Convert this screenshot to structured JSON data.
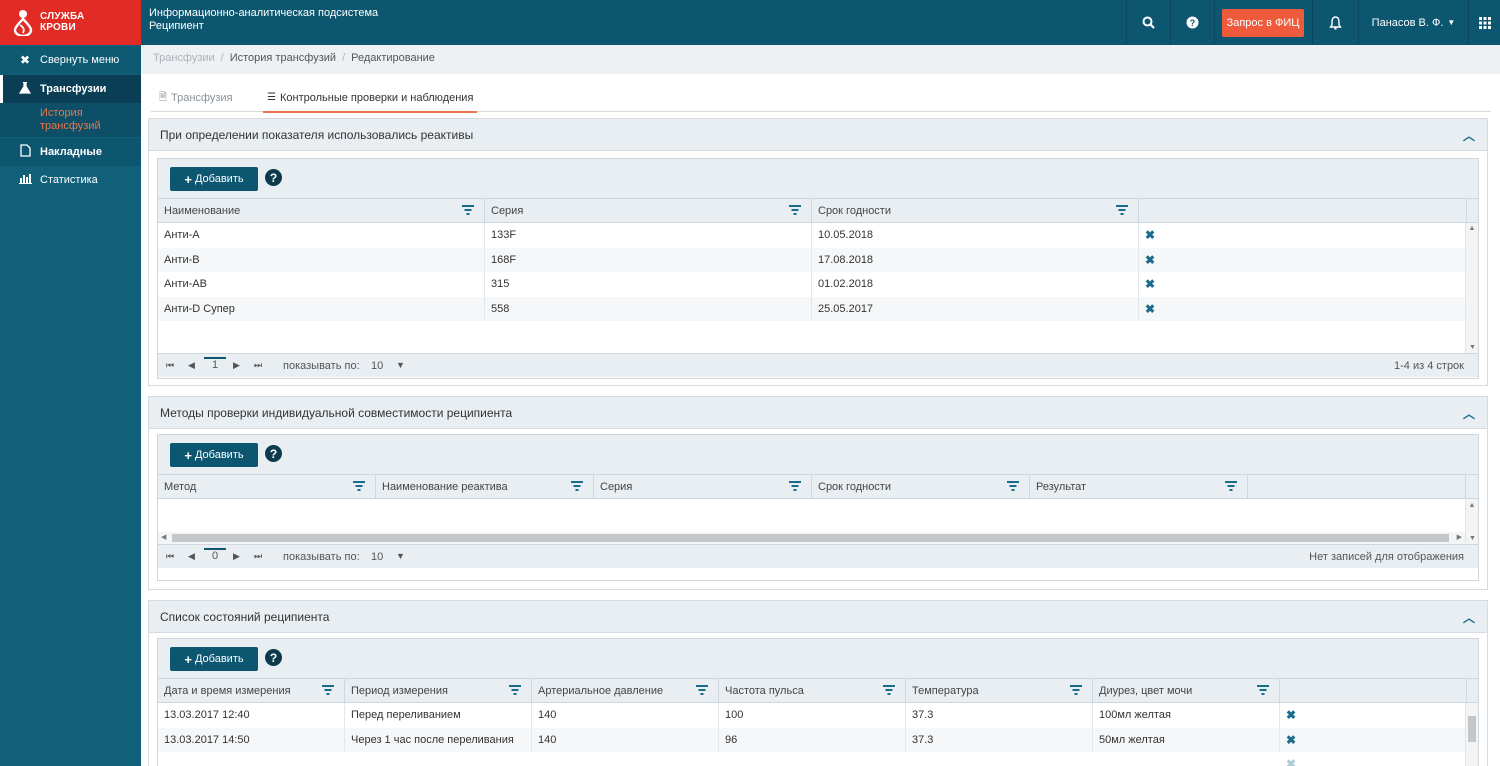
{
  "app": {
    "logo_line1": "СЛУЖБА",
    "logo_line2": "КРОВИ",
    "title_line1": "Информационно-аналитическая подсистема",
    "title_line2": "Реципиент",
    "fic_button": "Запрос в ФИЦ",
    "user_name": "Панасов В. Ф."
  },
  "sidebar": {
    "collapse": "Свернуть меню",
    "items": [
      {
        "label": "Трансфузии"
      },
      {
        "label": "История трансфузий"
      },
      {
        "label": "Накладные"
      },
      {
        "label": "Статистика"
      }
    ]
  },
  "breadcrumb": [
    "Трансфузии",
    "История трансфузий",
    "Редактирование"
  ],
  "tabs": [
    {
      "label": "Трансфузия"
    },
    {
      "label": "Контрольные проверки и наблюдения"
    }
  ],
  "add_label": "Добавить",
  "panel1": {
    "title": "При определении показателя использовались реактивы",
    "columns": [
      "Наименование",
      "Серия",
      "Срок годности"
    ],
    "rows": [
      [
        "Анти-A",
        "133F",
        "10.05.2018"
      ],
      [
        "Анти-B",
        "168F",
        "17.08.2018"
      ],
      [
        "Анти-AB",
        "315",
        "01.02.2018"
      ],
      [
        "Анти-D Супер",
        "558",
        "25.05.2017"
      ]
    ],
    "page": "1",
    "show_label": "показывать по:",
    "page_size": "10",
    "info": "1-4 из 4 строк"
  },
  "panel2": {
    "title": "Методы проверки индивидуальной совместимости реципиента",
    "columns": [
      "Метод",
      "Наименование реактива",
      "Серия",
      "Срок годности",
      "Результат"
    ],
    "page": "0",
    "show_label": "показывать по:",
    "page_size": "10",
    "info": "Нет записей для отображения"
  },
  "panel3": {
    "title": "Список состояний реципиента",
    "columns": [
      "Дата и время измерения",
      "Период измерения",
      "Артериальное давление",
      "Частота пульса",
      "Температура",
      "Диурез, цвет мочи"
    ],
    "rows": [
      [
        "13.03.2017 12:40",
        "Перед переливанием",
        "140",
        "100",
        "37.3",
        "100мл желтая"
      ],
      [
        "13.03.2017 14:50",
        "Через 1 час после переливания",
        "140",
        "96",
        "37.3",
        "50мл желтая"
      ]
    ]
  }
}
